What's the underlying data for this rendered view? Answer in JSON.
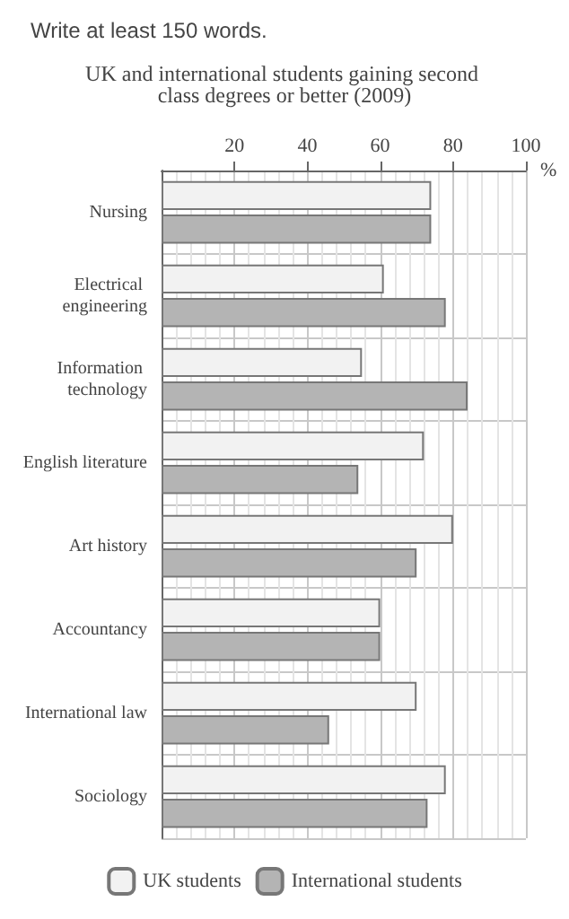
{
  "chart_data": {
    "type": "bar",
    "orientation": "horizontal",
    "title": "UK and international students gaining second class degrees or better (2009)",
    "annotations": [
      "Write at least 150 words."
    ],
    "xlabel": "%",
    "categories": [
      "Nursing",
      "Electrical engineering",
      "Information technology",
      "English literature",
      "Art history",
      "Accountancy",
      "International law",
      "Sociology"
    ],
    "series": [
      {
        "name": "UK students",
        "color": "#f2f2f2",
        "values": [
          74,
          61,
          55,
          72,
          80,
          60,
          70,
          78
        ]
      },
      {
        "name": "International students",
        "color": "#b4b4b4",
        "values": [
          74,
          78,
          84,
          54,
          70,
          60,
          46,
          73
        ]
      }
    ],
    "xlim": [
      0,
      100
    ],
    "xticks": [
      20,
      40,
      60,
      80,
      100
    ],
    "grid": true,
    "legend": "bottom"
  }
}
